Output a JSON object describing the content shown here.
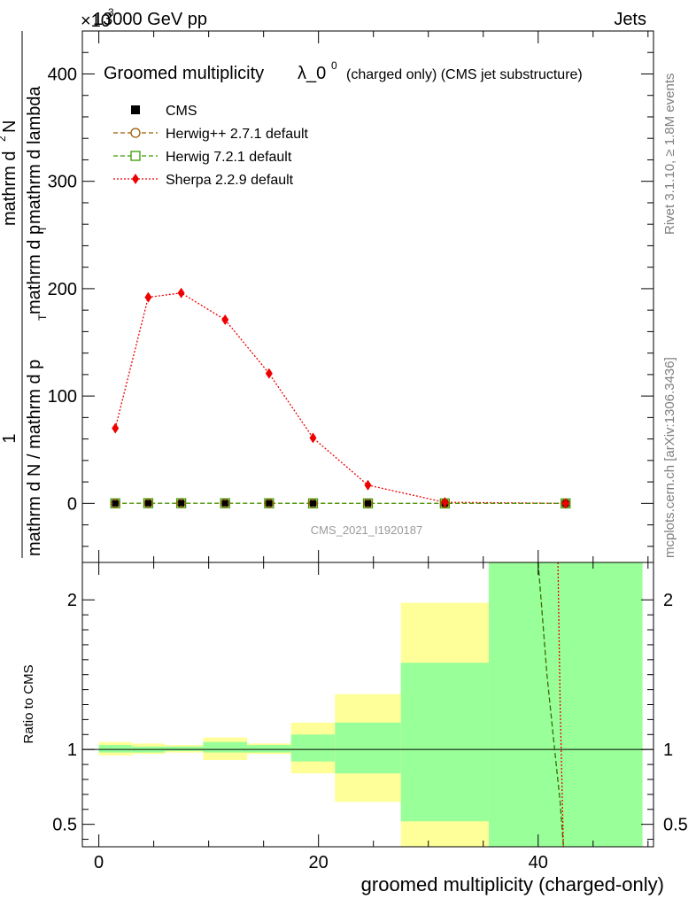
{
  "header": {
    "energy_label": "13000 GeV pp",
    "exponent_label": "×10",
    "exponent_power": "-3",
    "category_label": "Jets"
  },
  "side_labels": {
    "rivet": "Rivet 3.1.10, ≥ 1.8M events",
    "mcplots": "mcplots.cern.ch [arXiv:1306.3436]"
  },
  "chart_data": [
    {
      "type": "line",
      "title_main": "Groomed multiplicity",
      "title_lambda": "λ_0",
      "title_lambda_sup": "0",
      "title_sub": "(charged only) (CMS jet substructure)",
      "ylabel_numerator": "mathrm d",
      "ylabel_numerator_sup": "2",
      "ylabel_numerator_tail": "N",
      "ylabel_denominator": "mathrm d p",
      "ylabel_denominator_sub": "T",
      "ylabel_denominator_tail": " mathrm d lambda",
      "ylabel_prefix_num": "1",
      "ylabel_prefix_den": "mathrm d N / mathrm d p",
      "ylabel_prefix_den_sub": "T",
      "ylim": [
        -55,
        440
      ],
      "yticks": [
        0,
        100,
        200,
        300,
        400
      ],
      "watermark": "CMS_2021_I1920187",
      "legend_position": "top-left",
      "x": [
        1.5,
        4.5,
        7.5,
        11.5,
        15.5,
        19.5,
        24.5,
        31.5,
        42.5
      ],
      "series": [
        {
          "name": "CMS",
          "color": "#000000",
          "marker": "square",
          "values": [
            0.07,
            0.19,
            0.2,
            0.17,
            0.12,
            0.06,
            0.017,
            0.001,
            0.0
          ]
        },
        {
          "name": "Herwig++ 2.7.1 default",
          "color": "#9a5b00",
          "marker": "open-circle",
          "values": [
            0.07,
            0.19,
            0.2,
            0.17,
            0.12,
            0.06,
            0.017,
            0.001,
            0.0
          ]
        },
        {
          "name": "Herwig 7.2.1 default",
          "color": "#3a9a00",
          "marker": "open-square",
          "values": [
            0.07,
            0.19,
            0.2,
            0.17,
            0.12,
            0.06,
            0.017,
            0.001,
            0.0
          ]
        },
        {
          "name": "Sherpa 2.2.9 default",
          "color": "#ee0000",
          "marker": "diamond",
          "values": [
            70,
            192,
            196,
            171,
            121,
            61,
            17,
            1,
            0
          ]
        }
      ]
    },
    {
      "type": "area",
      "ylabel": "Ratio to CMS",
      "xlabel": "groomed multiplicity (charged-only)",
      "ylim": [
        0.35,
        2.25
      ],
      "xlim": [
        -1.5,
        50.5
      ],
      "yticks": [
        0.5,
        1,
        2
      ],
      "yticklabels": [
        "0.5",
        "1",
        "2"
      ],
      "xticks": [
        0,
        20,
        40
      ],
      "bins": [
        {
          "lo": 0,
          "hi": 3,
          "green": [
            0.98,
            1.03
          ],
          "yellow": [
            0.96,
            1.05
          ]
        },
        {
          "lo": 3,
          "hi": 6,
          "green": [
            0.98,
            1.02
          ],
          "yellow": [
            0.97,
            1.04
          ]
        },
        {
          "lo": 6,
          "hi": 9.5,
          "green": [
            0.99,
            1.02
          ],
          "yellow": [
            0.98,
            1.03
          ]
        },
        {
          "lo": 9.5,
          "hi": 13.5,
          "green": [
            0.98,
            1.05
          ],
          "yellow": [
            0.93,
            1.08
          ]
        },
        {
          "lo": 13.5,
          "hi": 17.5,
          "green": [
            0.98,
            1.03
          ],
          "yellow": [
            0.97,
            1.04
          ]
        },
        {
          "lo": 17.5,
          "hi": 21.5,
          "green": [
            0.92,
            1.1
          ],
          "yellow": [
            0.84,
            1.18
          ]
        },
        {
          "lo": 21.5,
          "hi": 27.5,
          "green": [
            0.84,
            1.18
          ],
          "yellow": [
            0.65,
            1.37
          ]
        },
        {
          "lo": 27.5,
          "hi": 35.5,
          "green": [
            0.52,
            1.58
          ],
          "yellow": [
            0.35,
            1.98
          ]
        },
        {
          "lo": 35.5,
          "hi": 49.5,
          "green": [
            0.35,
            2.25
          ],
          "yellow": [
            0.35,
            2.25
          ]
        }
      ],
      "reference_line": 1,
      "ratio_curves": [
        {
          "name": "Herwig",
          "color": "#3a6a00",
          "dash": "dashed",
          "points": [
            [
              40.0,
              2.25
            ],
            [
              40.8,
              1.5
            ],
            [
              41.5,
              1.0
            ],
            [
              42.0,
              0.65
            ],
            [
              42.3,
              0.35
            ]
          ]
        },
        {
          "name": "Sherpa",
          "color": "#ee0000",
          "dash": "dotted",
          "points": [
            [
              41.8,
              2.25
            ],
            [
              42.0,
              1.3
            ],
            [
              42.3,
              0.35
            ]
          ]
        }
      ]
    }
  ]
}
